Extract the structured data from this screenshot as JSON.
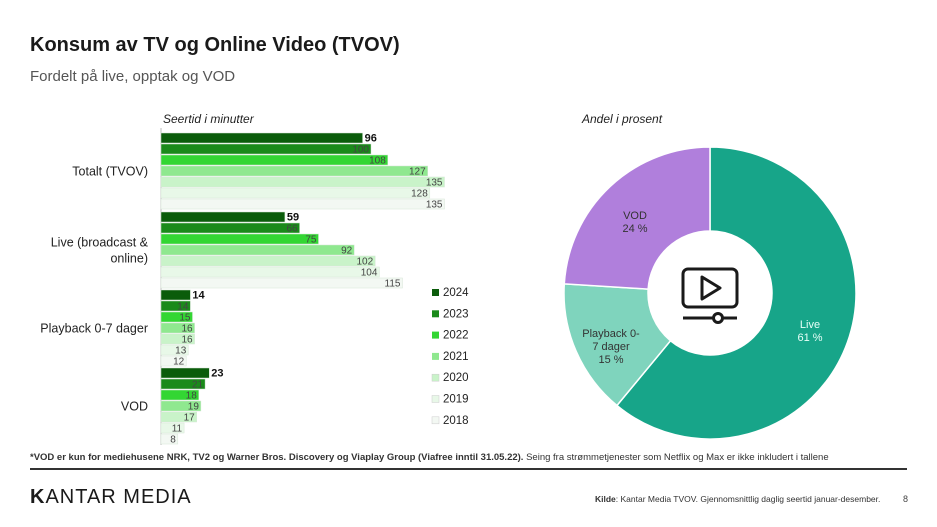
{
  "title": "Konsum av TV og Online Video (TVOV)",
  "subtitle": "Fordelt på live, opptak og VOD",
  "footnote_bold": "*VOD er kun for mediehusene NRK, TV2 og Warner Bros. Discovery og Viaplay Group (Viafree inntil 31.05.22).",
  "footnote_rest": " Seing fra strømmetjenester som Netflix og Max er ikke inkludert i tallene",
  "logo": {
    "first": "K",
    "rest": "ANTAR MEDIA"
  },
  "source_label": "Kilde",
  "source_text": ": Kantar Media TVOV. Gjennomsnittlig daglig seertid januar-desember.",
  "page_number": "8",
  "colors": {
    "years": [
      "#0b5c0b",
      "#1a8a1a",
      "#33d633",
      "#8fe88f",
      "#c9f3c9",
      "#e8f8e8",
      "#f3f8f3"
    ],
    "pie": [
      "#17a589",
      "#7fd4bd",
      "#b07fdc"
    ],
    "icon": "#1a1a1a"
  },
  "chart_data": [
    {
      "type": "bar",
      "title": "Seertid i minutter",
      "orientation": "horizontal",
      "categories": [
        "Totalt (TVOV)",
        "Live (broadcast & online)",
        "Playback 0-7 dager",
        "VOD"
      ],
      "series": [
        {
          "name": "2024",
          "values": [
            96,
            59,
            14,
            23
          ]
        },
        {
          "name": "2023",
          "values": [
            100,
            66,
            14,
            21
          ]
        },
        {
          "name": "2022",
          "values": [
            108,
            75,
            15,
            18
          ]
        },
        {
          "name": "2021",
          "values": [
            127,
            92,
            16,
            19
          ]
        },
        {
          "name": "2020",
          "values": [
            135,
            102,
            16,
            17
          ]
        },
        {
          "name": "2019",
          "values": [
            128,
            104,
            13,
            11
          ]
        },
        {
          "name": "2018",
          "values": [
            135,
            115,
            12,
            8
          ]
        }
      ],
      "legend": "right"
    },
    {
      "type": "pie",
      "title": "Andel i prosent",
      "donut": true,
      "slices": [
        {
          "label": "Live",
          "value": 61,
          "value_text": "61 %"
        },
        {
          "label": "Playback 0-7 dager",
          "value": 15,
          "value_text": "15 %"
        },
        {
          "label": "VOD",
          "value": 24,
          "value_text": "24 %"
        }
      ],
      "center_icon": "video-play-icon"
    }
  ]
}
